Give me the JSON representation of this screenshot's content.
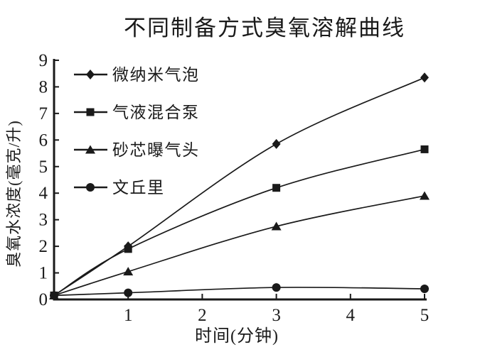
{
  "figure": {
    "title": "不同制备方式臭氧溶解曲线",
    "background_color": "#ffffff",
    "ink_color": "#1a1a1a"
  },
  "chart_data": {
    "type": "line",
    "title": "不同制备方式臭氧溶解曲线",
    "xlabel": "时间(分钟)",
    "ylabel": "臭氧水浓度(毫克/升)",
    "xlim": [
      0,
      5
    ],
    "ylim": [
      0,
      9
    ],
    "x_ticks": [
      "1",
      "2",
      "3",
      "4",
      "5"
    ],
    "x_tick_values": [
      1,
      2,
      3,
      4,
      5
    ],
    "y_ticks": [
      "0",
      "1",
      "2",
      "3",
      "4",
      "5",
      "6",
      "7",
      "8",
      "9"
    ],
    "y_tick_values": [
      0,
      1,
      2,
      3,
      4,
      5,
      6,
      7,
      8,
      9
    ],
    "grid": false,
    "legend_position": "upper-left-inside",
    "line_color": "#1a1a1a",
    "series": [
      {
        "name": "微纳米气泡",
        "marker": "diamond",
        "x": [
          0,
          1,
          3,
          5
        ],
        "y": [
          0.15,
          2.0,
          5.85,
          8.35
        ]
      },
      {
        "name": "气液混合泵",
        "marker": "square",
        "x": [
          0,
          1,
          3,
          5
        ],
        "y": [
          0.15,
          1.9,
          4.2,
          5.65
        ]
      },
      {
        "name": "砂芯曝气头",
        "marker": "triangle",
        "x": [
          0,
          1,
          3,
          5
        ],
        "y": [
          0.15,
          1.05,
          2.75,
          3.9
        ]
      },
      {
        "name": "文丘里",
        "marker": "circle",
        "x": [
          0,
          1,
          3,
          5
        ],
        "y": [
          0.15,
          0.25,
          0.45,
          0.4
        ]
      }
    ]
  }
}
